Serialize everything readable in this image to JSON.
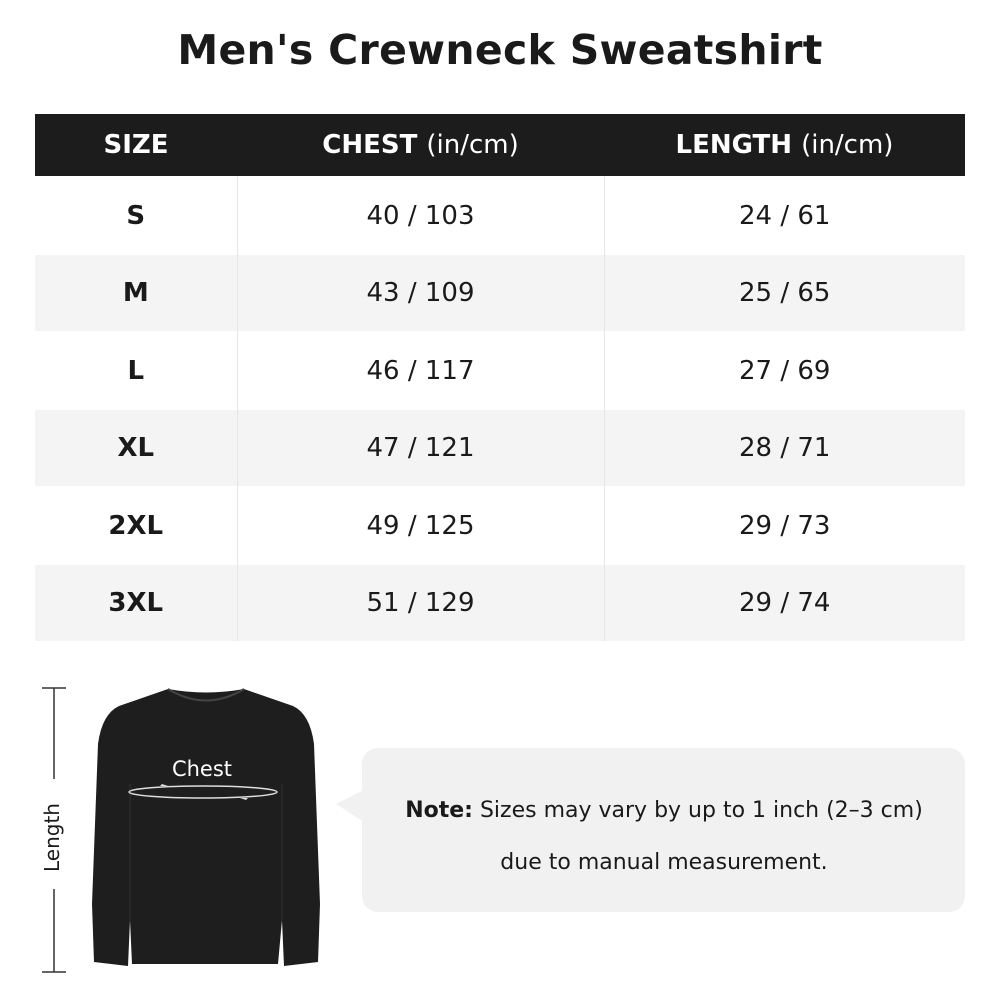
{
  "title": "Men's Crewneck Sweatshirt",
  "table": {
    "headers": [
      {
        "label": "SIZE",
        "unit": ""
      },
      {
        "label": "CHEST",
        "unit": "(in/cm)"
      },
      {
        "label": "LENGTH",
        "unit": "(in/cm)"
      }
    ],
    "rows": [
      {
        "size": "S",
        "chest": "40 / 103",
        "length": "24 / 61"
      },
      {
        "size": "M",
        "chest": "43 / 109",
        "length": "25 / 65"
      },
      {
        "size": "L",
        "chest": "46 / 117",
        "length": "27 / 69"
      },
      {
        "size": "XL",
        "chest": "47 / 121",
        "length": "28 / 71"
      },
      {
        "size": "2XL",
        "chest": "49 / 125",
        "length": "29 / 73"
      },
      {
        "size": "3XL",
        "chest": "51 / 129",
        "length": "29 / 74"
      }
    ]
  },
  "diagram": {
    "chest_label": "Chest",
    "length_label": "Length",
    "garment_color": "#1e1e1e"
  },
  "note": {
    "prefix": "Note:",
    "line1": "Sizes may vary by up to 1 inch (2–3 cm)",
    "line2": "due to manual measurement."
  }
}
